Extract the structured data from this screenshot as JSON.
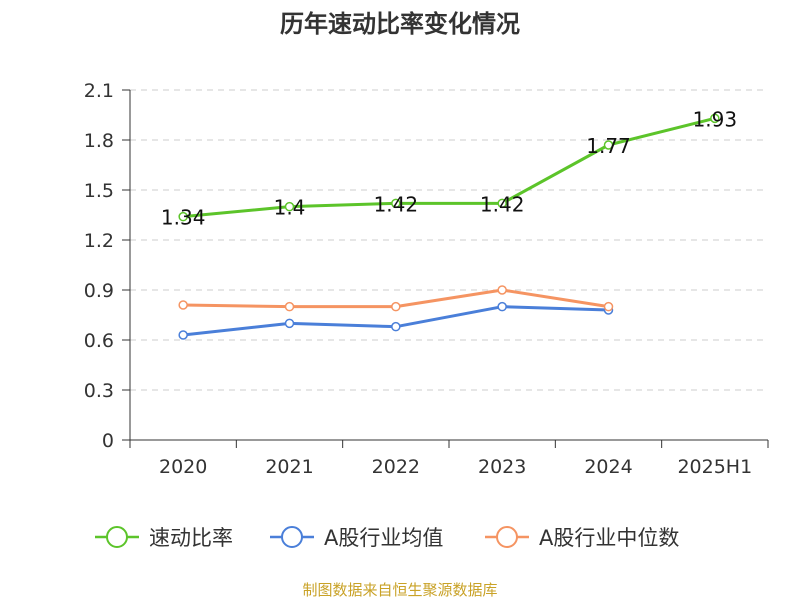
{
  "chart_data": {
    "type": "line",
    "title": "历年速动比率变化情况",
    "categories": [
      "2020",
      "2021",
      "2022",
      "2023",
      "2024",
      "2025H1"
    ],
    "y_ticks": [
      "0",
      "0.3",
      "0.6",
      "0.9",
      "1.2",
      "1.5",
      "1.8",
      "2.1"
    ],
    "ylim": [
      0,
      2.1
    ],
    "grid": true,
    "legend_position": "bottom",
    "series": [
      {
        "name": "速动比率",
        "color": "#5cc42a",
        "values": [
          1.34,
          1.4,
          1.42,
          1.42,
          1.77,
          1.93
        ],
        "labels": [
          "1.34",
          "1.4",
          "1.42",
          "1.42",
          "1.77",
          "1.93"
        ]
      },
      {
        "name": "A股行业均值",
        "color": "#4a7fd9",
        "values": [
          0.63,
          0.7,
          0.68,
          0.8,
          0.78,
          null
        ]
      },
      {
        "name": "A股行业中位数",
        "color": "#f59462",
        "values": [
          0.81,
          0.8,
          0.8,
          0.9,
          0.8,
          null
        ]
      }
    ]
  },
  "source": "制图数据来自恒生聚源数据库"
}
